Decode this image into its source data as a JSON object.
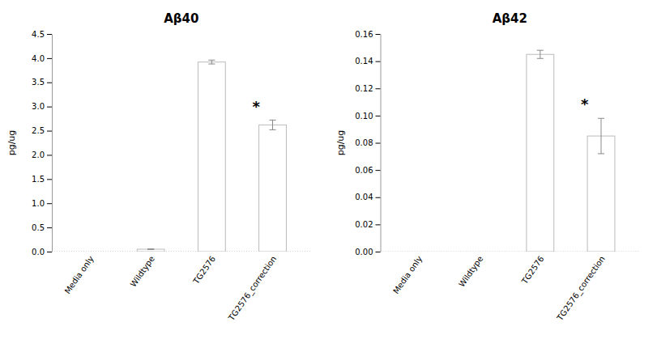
{
  "chart_data": [
    {
      "type": "bar",
      "title": "Aβ40",
      "categories": [
        "Media only",
        "Wildtype",
        "TG2576",
        "TG2576_correction"
      ],
      "values": [
        0.0,
        0.05,
        3.92,
        2.62
      ],
      "errors": [
        0.0,
        0.005,
        0.04,
        0.1
      ],
      "ylabel": "pg/ug",
      "ylim": [
        0,
        4.5
      ],
      "yticks": [
        {
          "value": 0,
          "label": "0.0"
        },
        0.5,
        {
          "value": 1.0,
          "label": "1.0"
        },
        1.5,
        {
          "value": 2.0,
          "label": "2.0"
        },
        2.5,
        {
          "value": 3.0,
          "label": "3.0"
        },
        3.5,
        {
          "value": 4.0,
          "label": "4.0"
        },
        4.5
      ],
      "annotations": [
        {
          "text": "*",
          "category": "TG2576_correction"
        }
      ],
      "color": "white",
      "grid": false
    },
    {
      "type": "bar",
      "title": "Aβ42",
      "categories": [
        "Media only",
        "Wildtype",
        "TG2576",
        "TG2576_correction"
      ],
      "values": [
        0.0,
        0.0,
        0.145,
        0.085
      ],
      "errors": [
        0.0,
        0.0,
        0.003,
        0.013
      ],
      "ylabel": "pg/ug",
      "ylim": [
        0,
        0.16
      ],
      "yticks": [
        {
          "value": 0,
          "label": "0.00"
        },
        0.02,
        0.04,
        0.06,
        0.08,
        {
          "value": 0.1,
          "label": "0.10"
        },
        0.12,
        0.14,
        0.16
      ],
      "annotations": [
        {
          "text": "*",
          "category": "TG2576_correction"
        }
      ],
      "color": "white",
      "grid": false
    }
  ]
}
